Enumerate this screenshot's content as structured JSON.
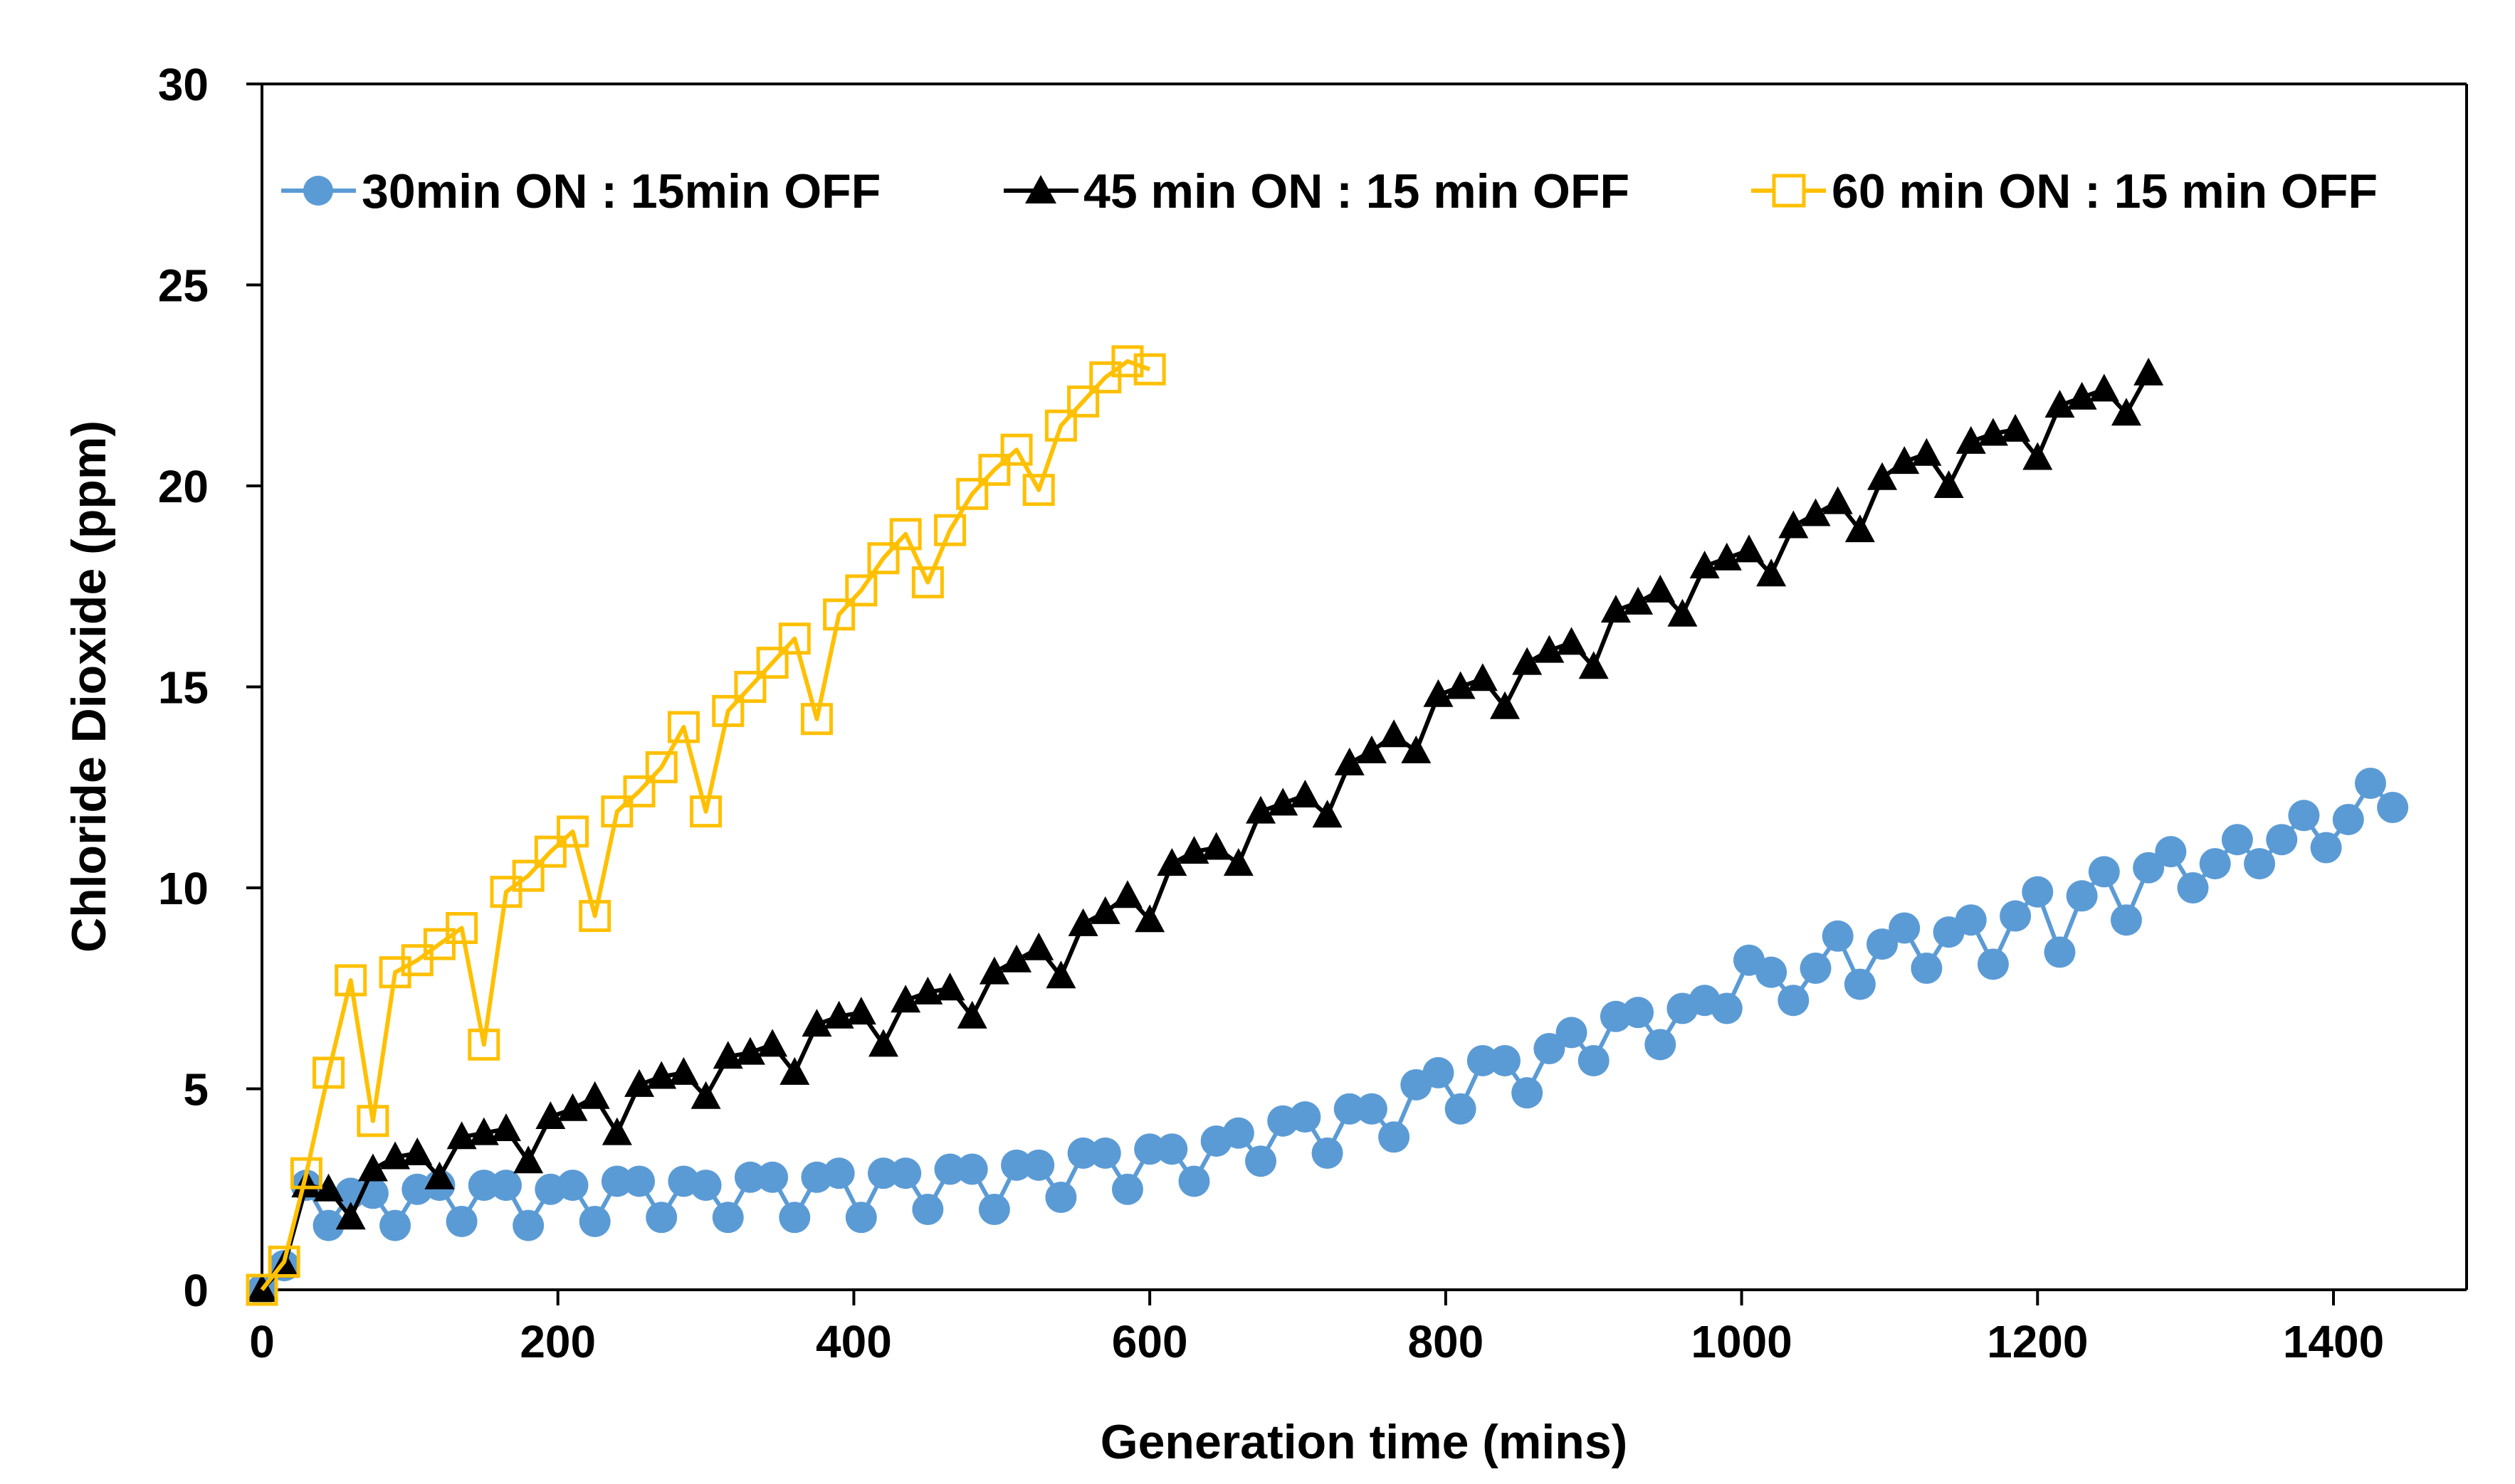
{
  "chart_data": {
    "type": "line",
    "title": "",
    "xlabel": "Generation time (mins)",
    "ylabel": "Chloride Dioxide (ppm)",
    "xlim": [
      0,
      1500
    ],
    "ylim": [
      0,
      30
    ],
    "xticks": [
      0,
      200,
      400,
      600,
      800,
      1000,
      1200,
      1400
    ],
    "yticks": [
      0,
      5,
      10,
      15,
      20,
      25,
      30
    ],
    "xtick_labels": [
      "0",
      "200",
      "400",
      "600",
      "800",
      "1000",
      "1200",
      "1400"
    ],
    "ytick_labels": [
      "0",
      "5",
      "10",
      "15",
      "20",
      "25",
      "30"
    ],
    "grid": false,
    "legend_position": "top",
    "series": [
      {
        "name": "30min ON : 15min OFF",
        "marker": "circle",
        "color": "#5B9BD5",
        "x": [
          0,
          15,
          30,
          45,
          60,
          75,
          90,
          105,
          120,
          135,
          150,
          165,
          180,
          195,
          210,
          225,
          240,
          255,
          270,
          285,
          300,
          315,
          330,
          345,
          360,
          375,
          390,
          405,
          420,
          435,
          450,
          465,
          480,
          495,
          510,
          525,
          540,
          555,
          570,
          585,
          600,
          615,
          630,
          645,
          660,
          675,
          690,
          705,
          720,
          735,
          750,
          765,
          780,
          795,
          810,
          825,
          840,
          855,
          870,
          885,
          900,
          915,
          930,
          945,
          960,
          975,
          990,
          1005,
          1020,
          1035,
          1050,
          1065,
          1080,
          1095,
          1110,
          1125,
          1140,
          1155,
          1170,
          1185,
          1200,
          1215,
          1230,
          1245,
          1260,
          1275,
          1290,
          1305,
          1320,
          1335,
          1350,
          1365,
          1380,
          1395,
          1410,
          1425,
          1440
        ],
        "y": [
          0,
          0.6,
          2.6,
          1.6,
          2.4,
          2.4,
          1.6,
          2.5,
          2.6,
          1.7,
          2.6,
          2.6,
          1.6,
          2.5,
          2.6,
          1.7,
          2.7,
          2.7,
          1.8,
          2.7,
          2.6,
          1.8,
          2.8,
          2.8,
          1.8,
          2.8,
          2.9,
          1.8,
          2.9,
          2.9,
          2.0,
          3.0,
          3.0,
          2.0,
          3.1,
          3.1,
          2.3,
          3.4,
          3.4,
          2.5,
          3.5,
          3.5,
          2.7,
          3.7,
          3.9,
          3.2,
          4.2,
          4.3,
          3.4,
          4.5,
          4.5,
          3.8,
          5.1,
          5.4,
          4.5,
          5.7,
          5.7,
          4.9,
          6.0,
          6.4,
          5.7,
          6.8,
          6.9,
          6.1,
          7.0,
          7.2,
          7.0,
          8.2,
          7.9,
          7.2,
          8.0,
          8.8,
          7.6,
          8.6,
          9.0,
          8.0,
          8.9,
          9.2,
          8.1,
          9.3,
          9.9,
          8.4,
          9.8,
          10.4,
          9.2,
          10.5,
          10.9,
          10.0,
          10.6,
          11.2,
          10.6,
          11.2,
          11.8,
          11.0,
          11.7,
          12.6,
          12.0
        ]
      },
      {
        "name": "45 min ON : 15 min OFF",
        "marker": "triangle",
        "color": "#000000",
        "x": [
          0,
          15,
          30,
          45,
          60,
          75,
          90,
          105,
          120,
          135,
          150,
          165,
          180,
          195,
          210,
          225,
          240,
          255,
          270,
          285,
          300,
          315,
          330,
          345,
          360,
          375,
          390,
          405,
          420,
          435,
          450,
          465,
          480,
          495,
          510,
          525,
          540,
          555,
          570,
          585,
          600,
          615,
          630,
          645,
          660,
          675,
          690,
          705,
          720,
          735,
          750,
          765,
          780,
          795,
          810,
          825,
          840,
          855,
          870,
          885,
          900,
          915,
          930,
          945,
          960,
          975,
          990,
          1005,
          1020,
          1035,
          1050,
          1065,
          1080,
          1095,
          1110,
          1125,
          1140,
          1155,
          1170,
          1185,
          1200,
          1215,
          1230,
          1245,
          1260,
          1275
        ],
        "y": [
          0,
          0.6,
          2.6,
          2.5,
          1.8,
          3.0,
          3.3,
          3.4,
          2.8,
          3.8,
          3.9,
          4.0,
          3.2,
          4.3,
          4.5,
          4.8,
          3.9,
          5.1,
          5.3,
          5.4,
          4.8,
          5.8,
          5.9,
          6.1,
          5.4,
          6.6,
          6.8,
          6.9,
          6.1,
          7.2,
          7.4,
          7.5,
          6.8,
          7.9,
          8.2,
          8.5,
          7.8,
          9.1,
          9.4,
          9.8,
          9.2,
          10.6,
          10.9,
          11.0,
          10.6,
          11.9,
          12.1,
          12.3,
          11.8,
          13.1,
          13.4,
          13.8,
          13.4,
          14.8,
          15.0,
          15.2,
          14.5,
          15.6,
          15.9,
          16.1,
          15.5,
          16.9,
          17.1,
          17.4,
          16.8,
          18.0,
          18.2,
          18.4,
          17.8,
          19.0,
          19.3,
          19.6,
          18.9,
          20.2,
          20.6,
          20.8,
          20.0,
          21.1,
          21.3,
          21.4,
          20.7,
          22.0,
          22.2,
          22.4,
          21.8,
          22.8
        ]
      },
      {
        "name": "60 min ON : 15 min OFF",
        "marker": "square",
        "color": "#FFC000",
        "x": [
          0,
          15,
          30,
          45,
          60,
          75,
          90,
          105,
          120,
          135,
          150,
          165,
          180,
          195,
          210,
          225,
          240,
          255,
          270,
          285,
          300,
          315,
          330,
          345,
          360,
          375,
          390,
          405,
          420,
          435,
          450,
          465,
          480,
          495,
          510,
          525,
          540,
          555,
          570,
          585,
          600
        ],
        "y": [
          0,
          0.7,
          2.9,
          5.4,
          7.7,
          4.2,
          7.9,
          8.2,
          8.6,
          9.0,
          6.1,
          9.9,
          10.3,
          10.9,
          11.4,
          9.3,
          11.9,
          12.4,
          13.0,
          14.0,
          11.9,
          14.4,
          15.0,
          15.6,
          16.2,
          14.2,
          16.8,
          17.4,
          18.2,
          18.8,
          17.6,
          18.9,
          19.8,
          20.4,
          20.9,
          19.9,
          21.5,
          22.1,
          22.7,
          23.1,
          22.9
        ]
      }
    ]
  }
}
